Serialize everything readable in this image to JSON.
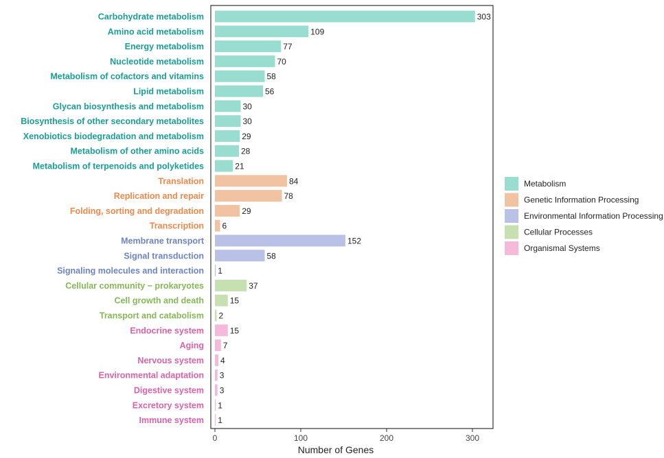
{
  "chart_data": {
    "type": "bar",
    "orientation": "horizontal",
    "xlabel": "Number of Genes",
    "ylabel": "",
    "xlim": [
      0,
      320
    ],
    "xticks": [
      0,
      100,
      200,
      300
    ],
    "grid": false,
    "legend_position": "right",
    "groups": [
      {
        "name": "Metabolism",
        "color": "#98DDCF",
        "label_color": "#1A9E95"
      },
      {
        "name": "Genetic Information Processing",
        "color": "#F2C3A2",
        "label_color": "#F0884A"
      },
      {
        "name": "Environmental Information Processing",
        "color": "#B9C2E6",
        "label_color": "#6D85C8"
      },
      {
        "name": "Cellular Processes",
        "color": "#C6E0B1",
        "label_color": "#86B956"
      },
      {
        "name": "Organismal Systems",
        "color": "#F5BAD9",
        "label_color": "#DC62A8"
      }
    ],
    "bars": [
      {
        "category": "Carbohydrate metabolism",
        "value": 303,
        "group": 0
      },
      {
        "category": "Amino acid metabolism",
        "value": 109,
        "group": 0
      },
      {
        "category": "Energy metabolism",
        "value": 77,
        "group": 0
      },
      {
        "category": "Nucleotide metabolism",
        "value": 70,
        "group": 0
      },
      {
        "category": "Metabolism of cofactors and vitamins",
        "value": 58,
        "group": 0
      },
      {
        "category": "Lipid metabolism",
        "value": 56,
        "group": 0
      },
      {
        "category": "Glycan biosynthesis and metabolism",
        "value": 30,
        "group": 0
      },
      {
        "category": "Biosynthesis of other secondary metabolites",
        "value": 30,
        "group": 0
      },
      {
        "category": "Xenobiotics biodegradation and metabolism",
        "value": 29,
        "group": 0
      },
      {
        "category": "Metabolism of other amino acids",
        "value": 28,
        "group": 0
      },
      {
        "category": "Metabolism of terpenoids and polyketides",
        "value": 21,
        "group": 0
      },
      {
        "category": "Translation",
        "value": 84,
        "group": 1
      },
      {
        "category": "Replication and repair",
        "value": 78,
        "group": 1
      },
      {
        "category": "Folding, sorting and degradation",
        "value": 29,
        "group": 1
      },
      {
        "category": "Transcription",
        "value": 6,
        "group": 1
      },
      {
        "category": "Membrane transport",
        "value": 152,
        "group": 2
      },
      {
        "category": "Signal transduction",
        "value": 58,
        "group": 2
      },
      {
        "category": "Signaling molecules and interaction",
        "value": 1,
        "group": 2
      },
      {
        "category": "Cellular community − prokaryotes",
        "value": 37,
        "group": 3
      },
      {
        "category": "Cell growth and death",
        "value": 15,
        "group": 3
      },
      {
        "category": "Transport and catabolism",
        "value": 2,
        "group": 3
      },
      {
        "category": "Endocrine system",
        "value": 15,
        "group": 4
      },
      {
        "category": "Aging",
        "value": 7,
        "group": 4
      },
      {
        "category": "Nervous system",
        "value": 4,
        "group": 4
      },
      {
        "category": "Environmental adaptation",
        "value": 3,
        "group": 4
      },
      {
        "category": "Digestive system",
        "value": 3,
        "group": 4
      },
      {
        "category": "Excretory system",
        "value": 1,
        "group": 4
      },
      {
        "category": "Immune system",
        "value": 1,
        "group": 4
      }
    ]
  }
}
